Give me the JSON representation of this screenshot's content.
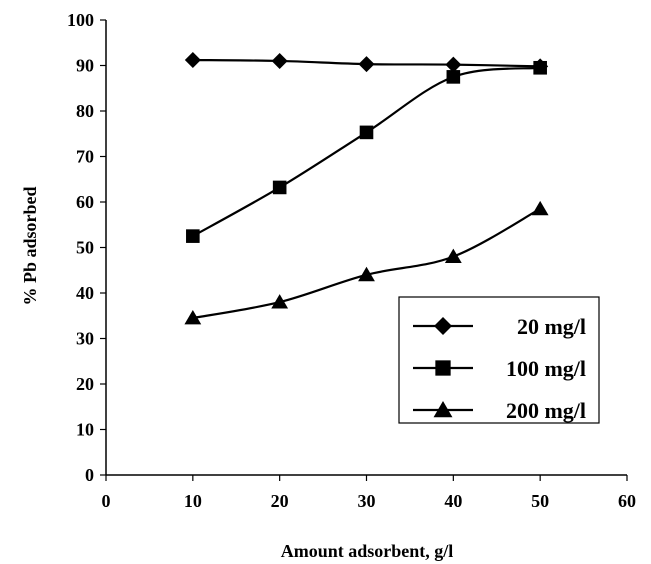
{
  "chart_data": {
    "type": "line",
    "title": "",
    "xlabel": "Amount adsorbent, g/l",
    "ylabel": "% Pb adsorbed",
    "xlim": [
      0,
      60
    ],
    "ylim": [
      0,
      100
    ],
    "xticks": [
      0,
      10,
      20,
      30,
      40,
      50,
      60
    ],
    "yticks": [
      0,
      10,
      20,
      30,
      40,
      50,
      60,
      70,
      80,
      90,
      100
    ],
    "grid": false,
    "legend_position": "bottom-right",
    "series": [
      {
        "name": "20 mg/l",
        "marker": "diamond",
        "color": "#000000",
        "x": [
          10,
          20,
          30,
          40,
          50
        ],
        "y": [
          91.2,
          91.0,
          90.3,
          90.2,
          89.8
        ]
      },
      {
        "name": "100 mg/l",
        "marker": "square",
        "color": "#000000",
        "x": [
          10,
          20,
          30,
          40,
          50
        ],
        "y": [
          52.5,
          63.2,
          75.3,
          87.5,
          89.5
        ]
      },
      {
        "name": "200 mg/l",
        "marker": "triangle",
        "color": "#000000",
        "x": [
          10,
          20,
          30,
          40,
          50
        ],
        "y": [
          34.5,
          38.0,
          44.0,
          48.0,
          58.5
        ]
      }
    ]
  }
}
